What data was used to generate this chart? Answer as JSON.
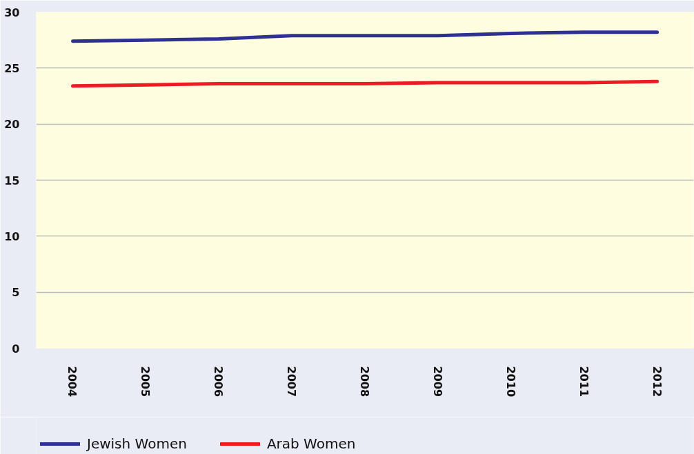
{
  "chart_data": {
    "type": "line",
    "categories": [
      "2004",
      "2005",
      "2006",
      "2007",
      "2008",
      "2009",
      "2010",
      "2011",
      "2012"
    ],
    "series": [
      {
        "name": "Jewish Women",
        "color": "#2e3192",
        "values": [
          27.4,
          27.5,
          27.6,
          27.9,
          27.9,
          27.9,
          28.1,
          28.2,
          28.2
        ]
      },
      {
        "name": "Arab Women",
        "color": "#ed1c24",
        "values": [
          23.4,
          23.5,
          23.6,
          23.6,
          23.6,
          23.7,
          23.7,
          23.7,
          23.8
        ]
      }
    ],
    "ylim": [
      0,
      30
    ],
    "yticks": [
      0,
      5,
      10,
      15,
      20,
      25,
      30
    ],
    "grid": "y",
    "legend": "bottom",
    "marker": "none",
    "line_style": "solid"
  }
}
